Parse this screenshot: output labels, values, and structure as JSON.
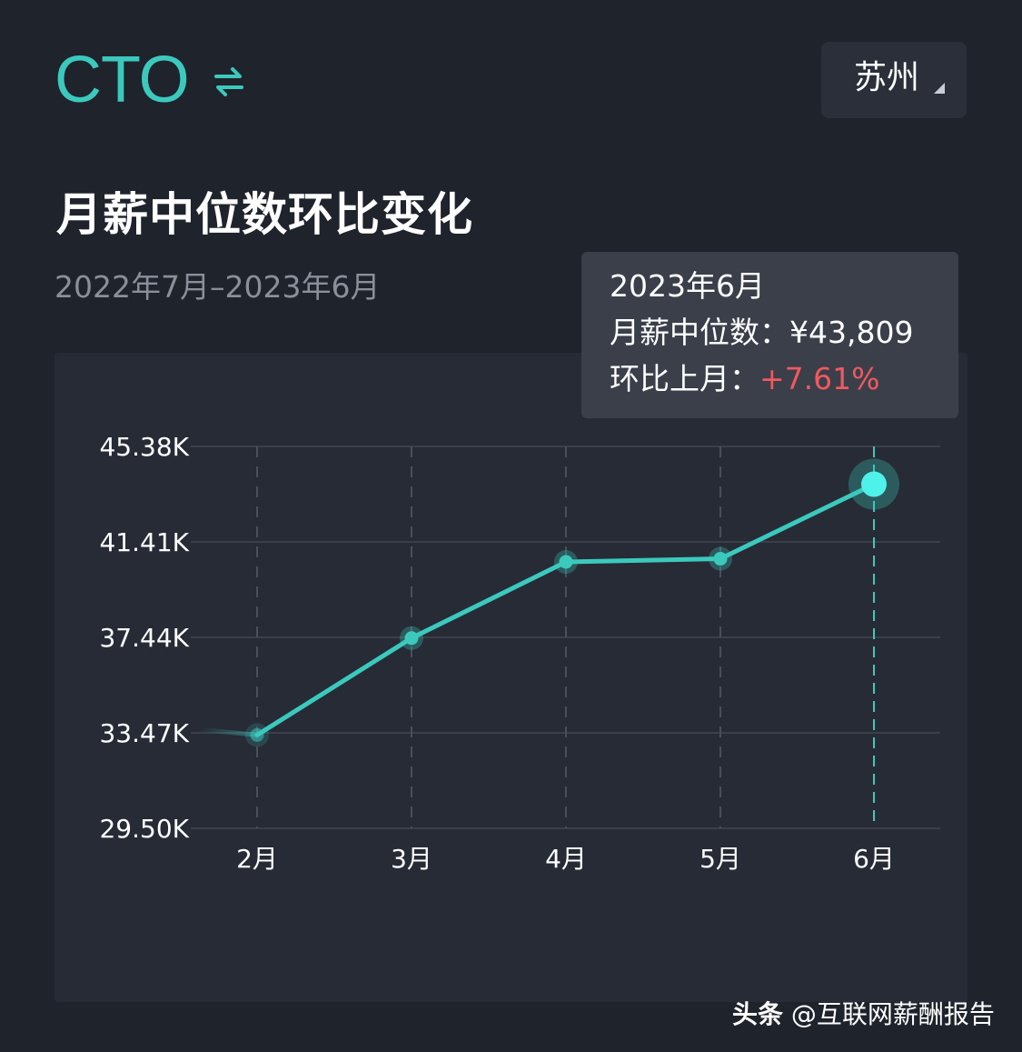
{
  "header": {
    "role": "CTO",
    "swap_icon": "swap-arrows-icon",
    "city": "苏州",
    "city_caret_icon": "caret-down-icon"
  },
  "section": {
    "title": "月薪中位数环比变化",
    "period": "2022年7月–2023年6月"
  },
  "tooltip": {
    "month": "2023年6月",
    "median_label": "月薪中位数：",
    "median_value": "¥43,809",
    "mom_label": "环比上月：",
    "mom_value": "+7.61%"
  },
  "watermark": {
    "brand": "头条",
    "account": "@互联网薪酬报告"
  },
  "colors": {
    "accent": "#3cc9bd",
    "highlight": "#4ff2ea",
    "up": "#ef5a5e",
    "background": "#1f232c",
    "card": "#262b36"
  },
  "chart_data": {
    "type": "line",
    "categories": [
      "2月",
      "3月",
      "4月",
      "5月",
      "6月"
    ],
    "values": [
      33380,
      37410,
      40580,
      40710,
      43809
    ],
    "y_ticks": [
      "45.38K",
      "41.41K",
      "37.44K",
      "33.47K",
      "29.50K"
    ],
    "ylim": [
      29500,
      45380
    ],
    "highlighted_category": "6月",
    "line_extends_left": true,
    "grid": true
  }
}
